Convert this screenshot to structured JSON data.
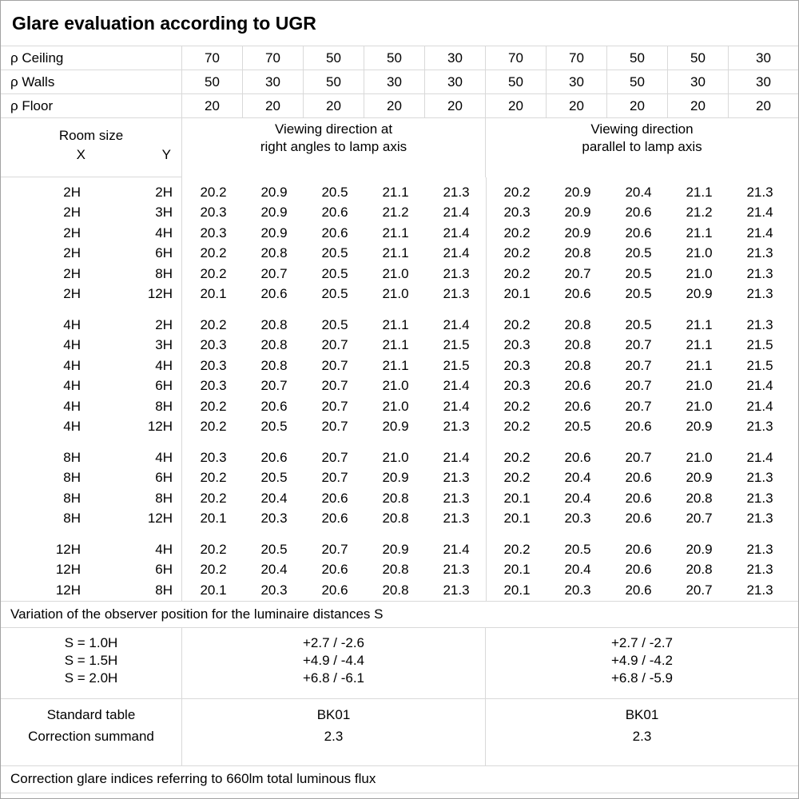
{
  "title": "Glare evaluation according to UGR",
  "reflectance": {
    "rows": [
      {
        "label": "ρ Ceiling",
        "values": [
          70,
          70,
          50,
          50,
          30,
          70,
          70,
          50,
          50,
          30
        ]
      },
      {
        "label": "ρ Walls",
        "values": [
          50,
          30,
          50,
          30,
          30,
          50,
          30,
          50,
          30,
          30
        ]
      },
      {
        "label": "ρ Floor",
        "values": [
          20,
          20,
          20,
          20,
          20,
          20,
          20,
          20,
          20,
          20
        ]
      }
    ]
  },
  "header": {
    "room_size": "Room size",
    "x": "X",
    "y": "Y",
    "right_angles_line1": "Viewing direction at",
    "right_angles_line2": "right angles to lamp axis",
    "parallel_line1": "Viewing direction",
    "parallel_line2": "parallel to lamp axis"
  },
  "blocks": [
    {
      "rows": [
        {
          "x": "2H",
          "y": "2H",
          "right_angles": [
            20.2,
            20.9,
            20.5,
            21.1,
            21.3
          ],
          "parallel": [
            20.2,
            20.9,
            20.4,
            21.1,
            21.3
          ]
        },
        {
          "x": "2H",
          "y": "3H",
          "right_angles": [
            20.3,
            20.9,
            20.6,
            21.2,
            21.4
          ],
          "parallel": [
            20.3,
            20.9,
            20.6,
            21.2,
            21.4
          ]
        },
        {
          "x": "2H",
          "y": "4H",
          "right_angles": [
            20.3,
            20.9,
            20.6,
            21.1,
            21.4
          ],
          "parallel": [
            20.2,
            20.9,
            20.6,
            21.1,
            21.4
          ]
        },
        {
          "x": "2H",
          "y": "6H",
          "right_angles": [
            20.2,
            20.8,
            20.5,
            21.1,
            21.4
          ],
          "parallel": [
            20.2,
            20.8,
            20.5,
            21.0,
            21.3
          ]
        },
        {
          "x": "2H",
          "y": "8H",
          "right_angles": [
            20.2,
            20.7,
            20.5,
            21.0,
            21.3
          ],
          "parallel": [
            20.2,
            20.7,
            20.5,
            21.0,
            21.3
          ]
        },
        {
          "x": "2H",
          "y": "12H",
          "right_angles": [
            20.1,
            20.6,
            20.5,
            21.0,
            21.3
          ],
          "parallel": [
            20.1,
            20.6,
            20.5,
            20.9,
            21.3
          ]
        }
      ]
    },
    {
      "rows": [
        {
          "x": "4H",
          "y": "2H",
          "right_angles": [
            20.2,
            20.8,
            20.5,
            21.1,
            21.4
          ],
          "parallel": [
            20.2,
            20.8,
            20.5,
            21.1,
            21.3
          ]
        },
        {
          "x": "4H",
          "y": "3H",
          "right_angles": [
            20.3,
            20.8,
            20.7,
            21.1,
            21.5
          ],
          "parallel": [
            20.3,
            20.8,
            20.7,
            21.1,
            21.5
          ]
        },
        {
          "x": "4H",
          "y": "4H",
          "right_angles": [
            20.3,
            20.8,
            20.7,
            21.1,
            21.5
          ],
          "parallel": [
            20.3,
            20.8,
            20.7,
            21.1,
            21.5
          ]
        },
        {
          "x": "4H",
          "y": "6H",
          "right_angles": [
            20.3,
            20.7,
            20.7,
            21.0,
            21.4
          ],
          "parallel": [
            20.3,
            20.6,
            20.7,
            21.0,
            21.4
          ]
        },
        {
          "x": "4H",
          "y": "8H",
          "right_angles": [
            20.2,
            20.6,
            20.7,
            21.0,
            21.4
          ],
          "parallel": [
            20.2,
            20.6,
            20.7,
            21.0,
            21.4
          ]
        },
        {
          "x": "4H",
          "y": "12H",
          "right_angles": [
            20.2,
            20.5,
            20.7,
            20.9,
            21.3
          ],
          "parallel": [
            20.2,
            20.5,
            20.6,
            20.9,
            21.3
          ]
        }
      ]
    },
    {
      "rows": [
        {
          "x": "8H",
          "y": "4H",
          "right_angles": [
            20.3,
            20.6,
            20.7,
            21.0,
            21.4
          ],
          "parallel": [
            20.2,
            20.6,
            20.7,
            21.0,
            21.4
          ]
        },
        {
          "x": "8H",
          "y": "6H",
          "right_angles": [
            20.2,
            20.5,
            20.7,
            20.9,
            21.3
          ],
          "parallel": [
            20.2,
            20.4,
            20.6,
            20.9,
            21.3
          ]
        },
        {
          "x": "8H",
          "y": "8H",
          "right_angles": [
            20.2,
            20.4,
            20.6,
            20.8,
            21.3
          ],
          "parallel": [
            20.1,
            20.4,
            20.6,
            20.8,
            21.3
          ]
        },
        {
          "x": "8H",
          "y": "12H",
          "right_angles": [
            20.1,
            20.3,
            20.6,
            20.8,
            21.3
          ],
          "parallel": [
            20.1,
            20.3,
            20.6,
            20.7,
            21.3
          ]
        }
      ]
    },
    {
      "rows": [
        {
          "x": "12H",
          "y": "4H",
          "right_angles": [
            20.2,
            20.5,
            20.7,
            20.9,
            21.4
          ],
          "parallel": [
            20.2,
            20.5,
            20.6,
            20.9,
            21.3
          ]
        },
        {
          "x": "12H",
          "y": "6H",
          "right_angles": [
            20.2,
            20.4,
            20.6,
            20.8,
            21.3
          ],
          "parallel": [
            20.1,
            20.4,
            20.6,
            20.8,
            21.3
          ]
        },
        {
          "x": "12H",
          "y": "8H",
          "right_angles": [
            20.1,
            20.3,
            20.6,
            20.8,
            21.3
          ],
          "parallel": [
            20.1,
            20.3,
            20.6,
            20.7,
            21.3
          ]
        }
      ]
    }
  ],
  "variation": {
    "note": "Variation of the observer position for the luminaire distances S",
    "rows": [
      {
        "label": "S = 1.0H",
        "right_angles": "+2.7 / -2.6",
        "parallel": "+2.7 / -2.7"
      },
      {
        "label": "S = 1.5H",
        "right_angles": "+4.9 / -4.4",
        "parallel": "+4.9 / -4.2"
      },
      {
        "label": "S = 2.0H",
        "right_angles": "+6.8 / -6.1",
        "parallel": "+6.8 / -5.9"
      }
    ]
  },
  "summary": {
    "standard_table_label": "Standard table",
    "correction_summand_label": "Correction summand",
    "standard_table": [
      "BK01",
      "BK01"
    ],
    "correction_summand": [
      "2.3",
      "2.3"
    ]
  },
  "footer": "Correction glare indices referring to 660lm total luminous flux",
  "colors": {
    "grid": "#d9d9d9",
    "frame": "#a3a3a3",
    "text": "#000000",
    "background": "#ffffff"
  }
}
